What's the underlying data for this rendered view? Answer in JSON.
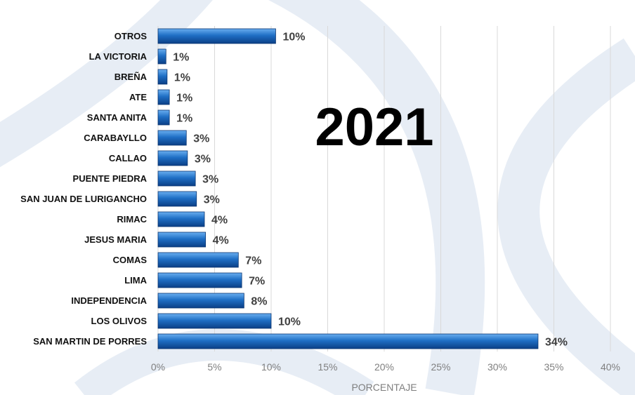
{
  "chart_data": {
    "type": "bar",
    "orientation": "horizontal",
    "title": "2021",
    "xlabel": "PORCENTAJE",
    "ylabel": "",
    "xlim": [
      0,
      40
    ],
    "xticks": [
      "0%",
      "5%",
      "10%",
      "15%",
      "20%",
      "25%",
      "30%",
      "35%",
      "40%"
    ],
    "grid": true,
    "bar_color": "#1f6fc5",
    "categories": [
      "OTROS",
      "LA VICTORIA",
      "BREÑA",
      "ATE",
      "SANTA ANITA",
      "CARABAYLLO",
      "CALLAO",
      "PUENTE PIEDRA",
      "SAN JUAN DE LURIGANCHO",
      "RIMAC",
      "JESUS MARIA",
      "COMAS",
      "LIMA",
      "INDEPENDENCIA",
      "LOS OLIVOS",
      "SAN MARTIN DE PORRES"
    ],
    "values": [
      10.4,
      0.7,
      0.8,
      1.0,
      1.0,
      2.5,
      2.6,
      3.3,
      3.4,
      4.1,
      4.2,
      7.1,
      7.4,
      7.6,
      10.0,
      33.6
    ],
    "data_labels": [
      "10%",
      "1%",
      "1%",
      "1%",
      "1%",
      "3%",
      "3%",
      "3%",
      "3%",
      "4%",
      "4%",
      "7%",
      "7%",
      "8%",
      "10%",
      "34%"
    ]
  }
}
